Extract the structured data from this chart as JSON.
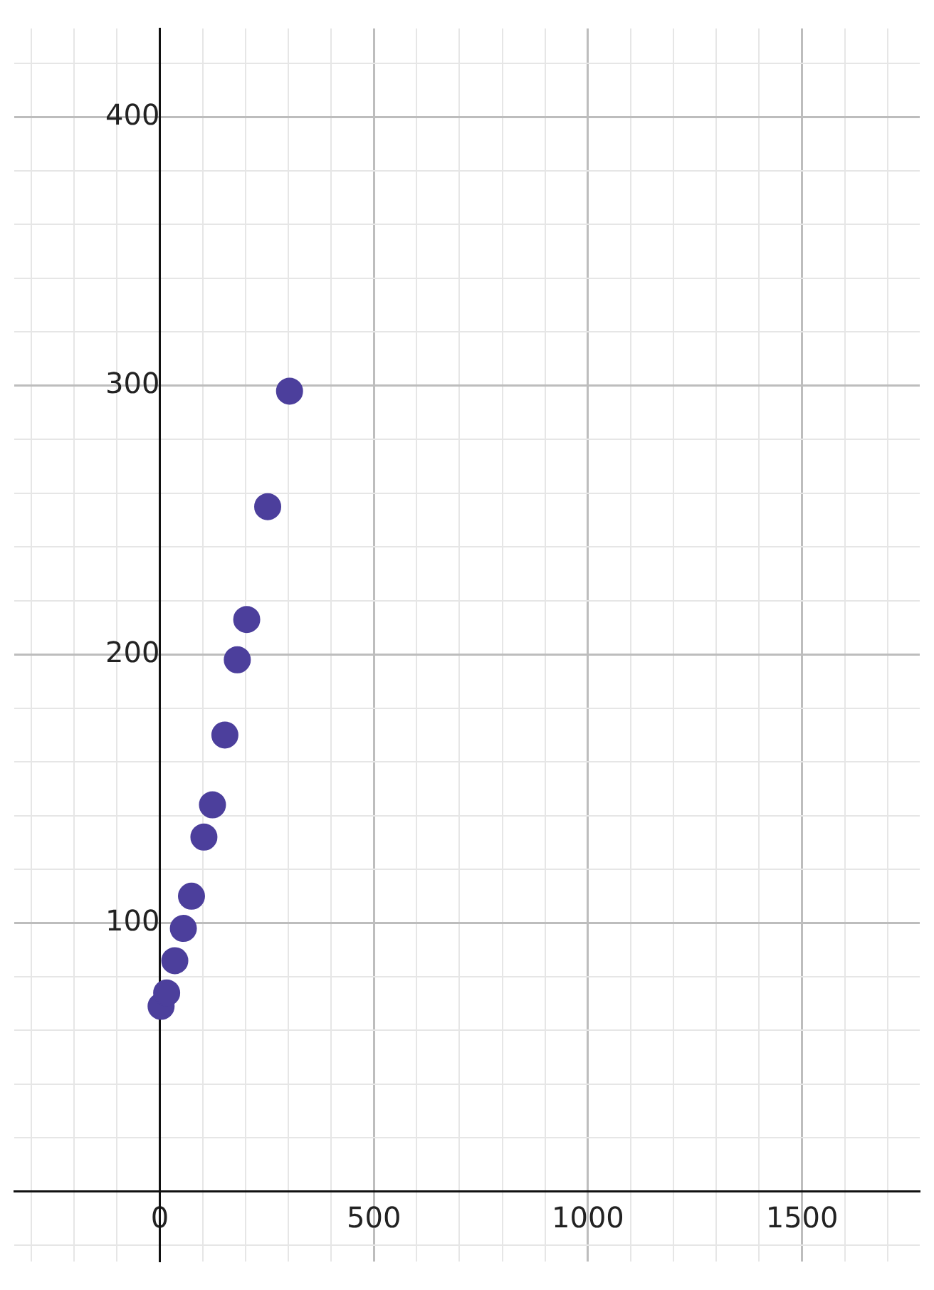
{
  "chart_data": {
    "type": "scatter",
    "x": [
      3,
      16,
      35,
      55,
      74,
      103,
      123,
      152,
      181,
      203,
      252,
      303
    ],
    "values": [
      69,
      74,
      86,
      98,
      110,
      132,
      144,
      170,
      198,
      213,
      255,
      298
    ],
    "color": "#4c3f9c",
    "marker": "circle",
    "grid": true,
    "legend": false,
    "xlim": [
      -340,
      1775
    ],
    "ylim": [
      -26,
      433
    ],
    "xticks": [
      {
        "value": -300,
        "label": null
      },
      {
        "value": -200,
        "label": null
      },
      {
        "value": -100,
        "label": null
      },
      0,
      {
        "value": 100,
        "label": null
      },
      {
        "value": 200,
        "label": null
      },
      {
        "value": 300,
        "label": null
      },
      {
        "value": 400,
        "label": null
      },
      500,
      {
        "value": 600,
        "label": null
      },
      {
        "value": 700,
        "label": null
      },
      {
        "value": 800,
        "label": null
      },
      {
        "value": 900,
        "label": null
      },
      1000,
      {
        "value": 1100,
        "label": null
      },
      {
        "value": 1200,
        "label": null
      },
      {
        "value": 1300,
        "label": null
      },
      {
        "value": 1400,
        "label": null
      },
      1500,
      {
        "value": 1600,
        "label": null
      },
      {
        "value": 1700,
        "label": null
      }
    ],
    "yticks": [
      {
        "value": -20,
        "label": null
      },
      {
        "value": 0,
        "label": null
      },
      {
        "value": 20,
        "label": null
      },
      {
        "value": 40,
        "label": null
      },
      {
        "value": 60,
        "label": null
      },
      {
        "value": 80,
        "label": null
      },
      100,
      {
        "value": 120,
        "label": null
      },
      {
        "value": 140,
        "label": null
      },
      {
        "value": 160,
        "label": null
      },
      {
        "value": 180,
        "label": null
      },
      200,
      {
        "value": 220,
        "label": null
      },
      {
        "value": 240,
        "label": null
      },
      {
        "value": 260,
        "label": null
      },
      {
        "value": 280,
        "label": null
      },
      300,
      {
        "value": 320,
        "label": null
      },
      {
        "value": 340,
        "label": null
      },
      {
        "value": 360,
        "label": null
      },
      {
        "value": 380,
        "label": null
      },
      400,
      {
        "value": 420,
        "label": null
      }
    ]
  }
}
